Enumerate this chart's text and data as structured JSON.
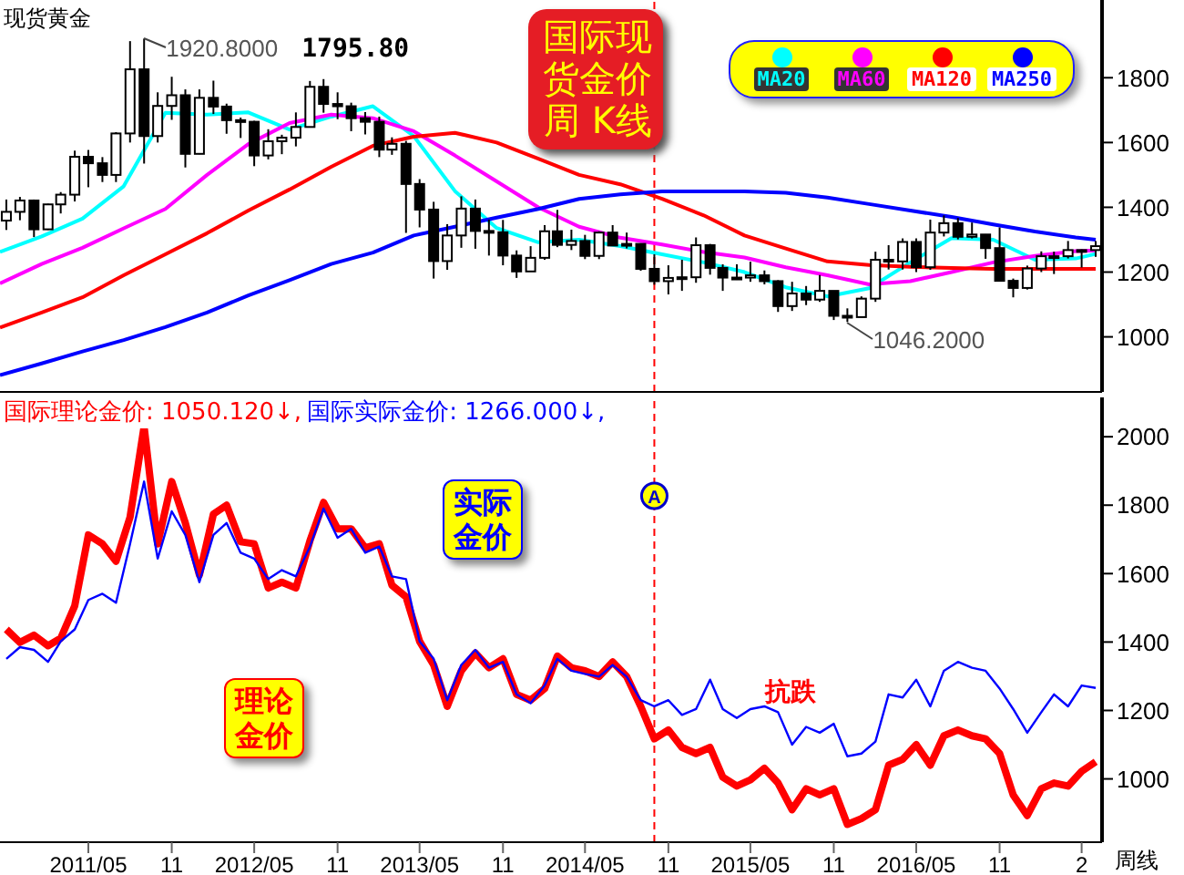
{
  "chart_data": [
    {
      "type": "candlestick",
      "title": "现货黄金",
      "x": [
        "2010-11",
        "2010-12",
        "2011-01",
        "2011-02",
        "2011-03",
        "2011-04",
        "2011-05",
        "2011-06",
        "2011-07",
        "2011-08",
        "2011-09",
        "2011-10",
        "2011-11",
        "2011-12",
        "2012-01",
        "2012-02",
        "2012-03",
        "2012-04",
        "2012-05",
        "2012-06",
        "2012-07",
        "2012-08",
        "2012-09",
        "2012-10",
        "2012-11",
        "2012-12",
        "2013-01",
        "2013-02",
        "2013-03",
        "2013-04",
        "2013-05",
        "2013-06",
        "2013-07",
        "2013-08",
        "2013-09",
        "2013-10",
        "2013-11",
        "2013-12",
        "2014-01",
        "2014-02",
        "2014-03",
        "2014-04",
        "2014-05",
        "2014-06",
        "2014-07",
        "2014-08",
        "2014-09",
        "2014-10",
        "2014-11",
        "2014-12",
        "2015-01",
        "2015-02",
        "2015-03",
        "2015-04",
        "2015-05",
        "2015-06",
        "2015-07",
        "2015-08",
        "2015-09",
        "2015-10",
        "2015-11",
        "2015-12",
        "2016-01",
        "2016-02",
        "2016-03",
        "2016-04",
        "2016-05",
        "2016-06",
        "2016-07",
        "2016-08",
        "2016-09",
        "2016-10",
        "2016-11",
        "2016-12",
        "2017-01",
        "2017-02",
        "2017-03",
        "2017-04",
        "2017-05",
        "2017-06"
      ],
      "ohlc": [
        [
          1359,
          1424,
          1330,
          1386
        ],
        [
          1386,
          1432,
          1360,
          1421
        ],
        [
          1421,
          1424,
          1308,
          1332
        ],
        [
          1332,
          1411,
          1330,
          1409
        ],
        [
          1409,
          1447,
          1381,
          1439
        ],
        [
          1439,
          1575,
          1418,
          1556
        ],
        [
          1556,
          1577,
          1462,
          1536
        ],
        [
          1536,
          1555,
          1478,
          1500
        ],
        [
          1500,
          1632,
          1478,
          1628
        ],
        [
          1628,
          1913,
          1600,
          1826
        ],
        [
          1826,
          1920.8,
          1535,
          1620
        ],
        [
          1620,
          1755,
          1600,
          1713
        ],
        [
          1713,
          1803,
          1670,
          1746
        ],
        [
          1746,
          1764,
          1523,
          1565
        ],
        [
          1565,
          1764,
          1564,
          1738
        ],
        [
          1738,
          1791,
          1688,
          1711
        ],
        [
          1711,
          1720,
          1627,
          1669
        ],
        [
          1669,
          1677,
          1614,
          1664
        ],
        [
          1664,
          1667,
          1527,
          1560
        ],
        [
          1560,
          1641,
          1548,
          1604
        ],
        [
          1604,
          1624,
          1564,
          1615
        ],
        [
          1615,
          1693,
          1588,
          1648
        ],
        [
          1648,
          1790,
          1647,
          1772
        ],
        [
          1772,
          1795.8,
          1692,
          1719
        ],
        [
          1719,
          1755,
          1672,
          1712
        ],
        [
          1712,
          1723,
          1635,
          1675
        ],
        [
          1675,
          1694,
          1625,
          1664
        ],
        [
          1664,
          1680,
          1555,
          1578
        ],
        [
          1578,
          1616,
          1562,
          1596
        ],
        [
          1596,
          1605,
          1321,
          1472
        ],
        [
          1472,
          1487,
          1338,
          1393
        ],
        [
          1393,
          1417,
          1180,
          1234
        ],
        [
          1234,
          1348,
          1207,
          1313
        ],
        [
          1313,
          1434,
          1275,
          1396
        ],
        [
          1396,
          1424,
          1272,
          1327
        ],
        [
          1327,
          1362,
          1251,
          1323
        ],
        [
          1323,
          1361,
          1221,
          1251
        ],
        [
          1251,
          1267,
          1182,
          1202
        ],
        [
          1202,
          1280,
          1202,
          1244
        ],
        [
          1244,
          1345,
          1238,
          1326
        ],
        [
          1326,
          1392,
          1277,
          1284
        ],
        [
          1284,
          1331,
          1268,
          1296
        ],
        [
          1296,
          1315,
          1240,
          1250
        ],
        [
          1250,
          1326,
          1240,
          1322
        ],
        [
          1322,
          1345,
          1281,
          1282
        ],
        [
          1282,
          1322,
          1273,
          1287
        ],
        [
          1287,
          1289,
          1204,
          1210
        ],
        [
          1210,
          1255,
          1161,
          1172
        ],
        [
          1172,
          1221,
          1131,
          1182
        ],
        [
          1182,
          1238,
          1142,
          1184
        ],
        [
          1184,
          1307,
          1167,
          1283
        ],
        [
          1283,
          1287,
          1192,
          1213
        ],
        [
          1213,
          1224,
          1142,
          1183
        ],
        [
          1183,
          1224,
          1176,
          1183
        ],
        [
          1183,
          1232,
          1170,
          1190
        ],
        [
          1190,
          1205,
          1162,
          1172
        ],
        [
          1172,
          1175,
          1077,
          1095
        ],
        [
          1095,
          1170,
          1080,
          1134
        ],
        [
          1134,
          1157,
          1098,
          1115
        ],
        [
          1115,
          1191,
          1108,
          1142
        ],
        [
          1142,
          1142,
          1052,
          1065
        ],
        [
          1065,
          1088,
          1046.2,
          1061
        ],
        [
          1061,
          1125,
          1061,
          1118
        ],
        [
          1118,
          1263,
          1108,
          1238
        ],
        [
          1238,
          1283,
          1208,
          1233
        ],
        [
          1233,
          1304,
          1208,
          1293
        ],
        [
          1293,
          1304,
          1200,
          1215
        ],
        [
          1215,
          1362,
          1207,
          1322
        ],
        [
          1322,
          1375,
          1310,
          1351
        ],
        [
          1351,
          1367,
          1301,
          1309
        ],
        [
          1309,
          1353,
          1304,
          1316
        ],
        [
          1316,
          1317,
          1241,
          1274
        ],
        [
          1274,
          1338,
          1171,
          1173
        ],
        [
          1173,
          1180,
          1122,
          1151
        ],
        [
          1151,
          1220,
          1146,
          1211
        ],
        [
          1211,
          1264,
          1200,
          1249
        ],
        [
          1249,
          1263,
          1194,
          1249
        ],
        [
          1249,
          1296,
          1242,
          1268
        ],
        [
          1268,
          1270,
          1214,
          1268
        ],
        [
          1268,
          1296,
          1247,
          1280
        ]
      ],
      "series": [
        {
          "name": "MA20",
          "type": "line",
          "color": "#00ffff",
          "x": [
            "2010-10-18",
            "2011-01-18",
            "2011-04-18",
            "2011-07-18",
            "2011-10-18",
            "2012-01-18",
            "2012-04-18",
            "2012-07-18",
            "2012-10-18",
            "2013-01-18",
            "2013-04-18",
            "2013-07-18",
            "2013-10-18",
            "2014-01-18",
            "2014-04-18",
            "2014-07-18",
            "2014-10-18",
            "2015-01-18",
            "2015-04-18",
            "2015-07-18",
            "2015-10-18",
            "2016-01-18",
            "2016-04-18",
            "2016-07-18",
            "2016-10-18",
            "2017-01-18",
            "2017-04-18",
            "2017-06-01"
          ],
          "values": [
            1262,
            1310,
            1365,
            1465,
            1692,
            1686,
            1693,
            1640,
            1680,
            1712,
            1620,
            1450,
            1336,
            1292,
            1300,
            1280,
            1255,
            1230,
            1200,
            1153,
            1125,
            1150,
            1230,
            1305,
            1300,
            1238,
            1242,
            1256
          ]
        },
        {
          "name": "MA60",
          "type": "line",
          "color": "#ff00ff",
          "x": [
            "2010-10-18",
            "2011-01-18",
            "2011-04-18",
            "2011-07-18",
            "2011-10-18",
            "2012-01-18",
            "2012-04-18",
            "2012-07-18",
            "2012-10-18",
            "2013-01-18",
            "2013-04-18",
            "2013-07-18",
            "2013-10-18",
            "2014-01-18",
            "2014-04-18",
            "2014-07-18",
            "2014-10-18",
            "2015-01-18",
            "2015-04-18",
            "2015-07-18",
            "2015-10-18",
            "2016-01-18",
            "2016-04-18",
            "2016-07-18",
            "2016-10-18",
            "2017-01-18",
            "2017-04-18",
            "2017-06-01"
          ],
          "values": [
            1165,
            1225,
            1275,
            1335,
            1395,
            1500,
            1595,
            1660,
            1686,
            1675,
            1635,
            1560,
            1480,
            1400,
            1340,
            1306,
            1285,
            1262,
            1245,
            1215,
            1190,
            1162,
            1172,
            1200,
            1230,
            1250,
            1265,
            1267
          ]
        },
        {
          "name": "MA120",
          "type": "line",
          "color": "#ff0000",
          "x": [
            "2010-10-18",
            "2011-01-18",
            "2011-04-18",
            "2011-07-18",
            "2011-10-18",
            "2012-01-18",
            "2012-04-18",
            "2012-07-18",
            "2012-10-18",
            "2013-01-18",
            "2013-04-18",
            "2013-07-18",
            "2013-10-18",
            "2014-01-18",
            "2014-04-18",
            "2014-07-18",
            "2014-10-18",
            "2015-01-18",
            "2015-04-18",
            "2015-07-18",
            "2015-10-18",
            "2016-01-18",
            "2016-04-18",
            "2016-07-18",
            "2016-10-18",
            "2017-01-18",
            "2017-04-18",
            "2017-06-01"
          ],
          "values": [
            1029,
            1075,
            1122,
            1190,
            1255,
            1320,
            1390,
            1455,
            1525,
            1590,
            1618,
            1630,
            1600,
            1550,
            1500,
            1471,
            1426,
            1375,
            1313,
            1273,
            1233,
            1222,
            1216,
            1213,
            1210,
            1210,
            1210,
            1210
          ]
        },
        {
          "name": "MA250",
          "type": "line",
          "color": "#0000ff",
          "x": [
            "2010-10-18",
            "2011-01-18",
            "2011-04-18",
            "2011-07-18",
            "2011-10-18",
            "2012-01-18",
            "2012-04-18",
            "2012-07-18",
            "2012-10-18",
            "2013-01-18",
            "2013-04-18",
            "2013-07-18",
            "2013-10-18",
            "2014-01-18",
            "2014-04-18",
            "2014-07-18",
            "2014-10-18",
            "2015-01-18",
            "2015-04-18",
            "2015-07-18",
            "2015-10-18",
            "2016-01-18",
            "2016-04-18",
            "2016-07-18",
            "2016-10-18",
            "2017-01-18",
            "2017-04-18",
            "2017-06-01"
          ],
          "values": [
            882,
            918,
            955,
            990,
            1030,
            1075,
            1128,
            1175,
            1225,
            1260,
            1313,
            1340,
            1368,
            1395,
            1426,
            1440,
            1449,
            1449,
            1449,
            1445,
            1430,
            1410,
            1390,
            1370,
            1347,
            1325,
            1307,
            1300
          ]
        }
      ],
      "xlim": [
        "2010-10-18",
        "2017-06-15"
      ],
      "ylim": [
        830,
        2040
      ],
      "yticks": [
        1000,
        1200,
        1400,
        1600,
        1800
      ],
      "legend": "top",
      "tick_labels": "y",
      "ref_lines": [
        {
          "axis": "x",
          "value": "2014-10",
          "color": "#ff0000",
          "line_style": "dashed"
        }
      ],
      "annotations": [
        {
          "text": "1920.8000",
          "x": "2011-09",
          "y": 1920.8
        },
        {
          "text": "1795.80",
          "x": "2012-10",
          "y": 1795.8
        },
        {
          "text": "1046.2000",
          "x": "2015-12",
          "y": 1046.2
        },
        "国际现货金价周 K线"
      ]
    },
    {
      "type": "line",
      "x": [
        "2010-11",
        "2010-12",
        "2011-01",
        "2011-02",
        "2011-03",
        "2011-04",
        "2011-05",
        "2011-06",
        "2011-07",
        "2011-08",
        "2011-09",
        "2011-10",
        "2011-11",
        "2011-12",
        "2012-01",
        "2012-02",
        "2012-03",
        "2012-04",
        "2012-05",
        "2012-06",
        "2012-07",
        "2012-08",
        "2012-09",
        "2012-10",
        "2012-11",
        "2012-12",
        "2013-01",
        "2013-02",
        "2013-03",
        "2013-04",
        "2013-05",
        "2013-06",
        "2013-07",
        "2013-08",
        "2013-09",
        "2013-10",
        "2013-11",
        "2013-12",
        "2014-01",
        "2014-02",
        "2014-03",
        "2014-04",
        "2014-05",
        "2014-06",
        "2014-07",
        "2014-08",
        "2014-09",
        "2014-10",
        "2014-11",
        "2014-12",
        "2015-01",
        "2015-02",
        "2015-03",
        "2015-04",
        "2015-05",
        "2015-06",
        "2015-07",
        "2015-08",
        "2015-09",
        "2015-10",
        "2015-11",
        "2015-12",
        "2016-01",
        "2016-02",
        "2016-03",
        "2016-04",
        "2016-05",
        "2016-06",
        "2016-07",
        "2016-08",
        "2016-09",
        "2016-10",
        "2016-11",
        "2016-12",
        "2017-01",
        "2017-02",
        "2017-03",
        "2017-04",
        "2017-05",
        "2017-06"
      ],
      "series": [
        {
          "name": "国际理论金价: 1050.120↓,",
          "color": "#ff0000",
          "values": [
            1437,
            1399,
            1420,
            1389,
            1411,
            1506,
            1713,
            1687,
            1636,
            1765,
            2030,
            1687,
            1869,
            1748,
            1596,
            1774,
            1800,
            1693,
            1687,
            1558,
            1575,
            1558,
            1696,
            1808,
            1731,
            1731,
            1675,
            1687,
            1566,
            1532,
            1402,
            1333,
            1212,
            1316,
            1368,
            1325,
            1351,
            1247,
            1230,
            1264,
            1359,
            1325,
            1316,
            1299,
            1342,
            1299,
            1212,
            1117,
            1143,
            1092,
            1074,
            1092,
            1005,
            979,
            997,
            1031,
            988,
            910,
            971,
            953,
            971,
            867,
            884,
            910,
            1040,
            1057,
            1100,
            1040,
            1126,
            1143,
            1126,
            1117,
            1074,
            953,
            893,
            971,
            988,
            979,
            1022,
            1050
          ]
        },
        {
          "name": "国际实际金价: 1266.000↓,",
          "color": "#0000ff",
          "values": [
            1351,
            1385,
            1377,
            1342,
            1402,
            1437,
            1523,
            1541,
            1515,
            1687,
            1869,
            1644,
            1782,
            1713,
            1575,
            1713,
            1748,
            1661,
            1644,
            1584,
            1610,
            1592,
            1679,
            1790,
            1705,
            1731,
            1661,
            1679,
            1592,
            1584,
            1402,
            1351,
            1230,
            1333,
            1377,
            1325,
            1342,
            1247,
            1221,
            1273,
            1351,
            1316,
            1307,
            1299,
            1333,
            1299,
            1230,
            1212,
            1230,
            1187,
            1204,
            1290,
            1204,
            1178,
            1204,
            1212,
            1195,
            1100,
            1152,
            1135,
            1161,
            1066,
            1074,
            1109,
            1247,
            1238,
            1290,
            1212,
            1316,
            1342,
            1325,
            1316,
            1264,
            1204,
            1135,
            1195,
            1247,
            1212,
            1273,
            1266
          ]
        }
      ],
      "xlim": [
        "2010-10-18",
        "2017-06-15"
      ],
      "xticks": [
        {
          "value": "2011-05",
          "label": "2011/05"
        },
        {
          "value": "2011-11",
          "label": "11"
        },
        {
          "value": "2012-05",
          "label": "2012/05"
        },
        {
          "value": "2012-11",
          "label": "11"
        },
        {
          "value": "2013-05",
          "label": "2013/05"
        },
        {
          "value": "2013-11",
          "label": "11"
        },
        {
          "value": "2014-05",
          "label": "2014/05"
        },
        {
          "value": "2014-11",
          "label": "11"
        },
        {
          "value": "2015-05",
          "label": "2015/05"
        },
        {
          "value": "2015-11",
          "label": "11"
        },
        {
          "value": "2016-05",
          "label": "2016/05"
        },
        {
          "value": "2016-11",
          "label": "11"
        },
        {
          "value": "2017-05",
          "label": "2"
        }
      ],
      "ylim": [
        815,
        2115
      ],
      "yticks": [
        1000,
        1200,
        1400,
        1600,
        1800,
        2000
      ],
      "legend": "top left",
      "ref_lines": [
        {
          "axis": "x",
          "value": "2014-10",
          "label": "A",
          "color": "#ff0000",
          "line_style": "dashed"
        }
      ],
      "annotations": [
        "实际金价",
        "理论金价",
        "抗跌",
        "周线"
      ]
    }
  ]
}
